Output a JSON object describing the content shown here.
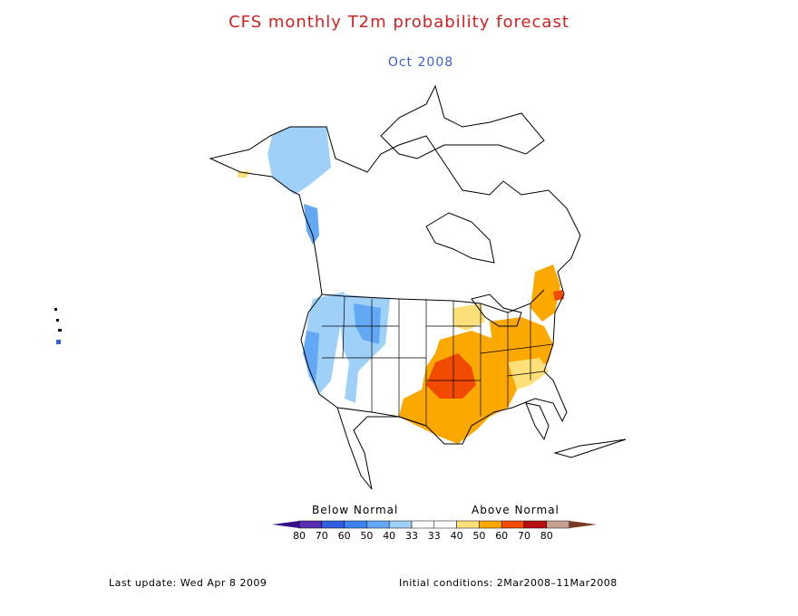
{
  "title": "CFS monthly T2m probability forecast",
  "subtitle": "Oct 2008",
  "legend": {
    "below_label": "Below Normal",
    "above_label": "Above Normal",
    "categories": [
      {
        "label": "80",
        "color": "#5a2db0"
      },
      {
        "label": "70",
        "color": "#3060e0"
      },
      {
        "label": "60",
        "color": "#3d82f0"
      },
      {
        "label": "50",
        "color": "#62a8f5"
      },
      {
        "label": "40",
        "color": "#9fd0f8"
      },
      {
        "label": "33",
        "color": "#ffffff"
      },
      {
        "label": "33",
        "color": "#ffffff"
      },
      {
        "label": "40",
        "color": "#fde07a"
      },
      {
        "label": "50",
        "color": "#fba800"
      },
      {
        "label": "60",
        "color": "#f24a00"
      },
      {
        "label": "70",
        "color": "#b81010"
      },
      {
        "label": "80",
        "color": "#c8a090"
      }
    ],
    "left_end_color": "#38108a",
    "right_end_color": "#7a3a25"
  },
  "footer": {
    "last_update": "Last update: Wed Apr 8 2009",
    "initial_conditions": "Initial conditions: 2Mar2008–11Mar2008"
  }
}
